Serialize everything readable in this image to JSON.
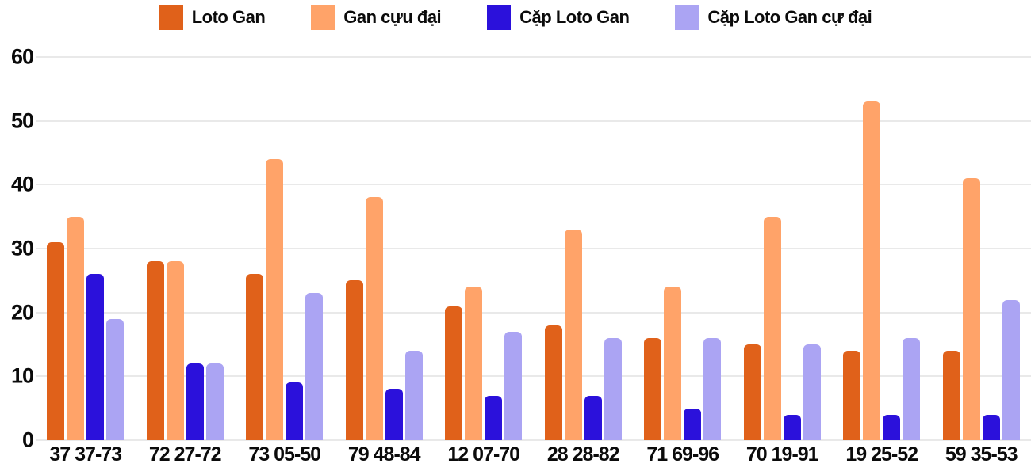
{
  "chart_data": {
    "type": "bar",
    "categories": [
      "37 37-73",
      "72 27-72",
      "73 05-50",
      "79 48-84",
      "12 07-70",
      "28 28-82",
      "71 69-96",
      "70 19-91",
      "19 25-52",
      "59 35-53"
    ],
    "series": [
      {
        "name": "Loto Gan",
        "color": "#e0611a",
        "values": [
          31,
          28,
          26,
          25,
          21,
          18,
          16,
          15,
          14,
          14
        ]
      },
      {
        "name": "Gan cựu đại",
        "color": "#ffa369",
        "values": [
          35,
          28,
          44,
          38,
          24,
          33,
          24,
          35,
          53,
          41
        ]
      },
      {
        "name": "Cặp Loto Gan",
        "color": "#2b11db",
        "values": [
          26,
          12,
          9,
          8,
          7,
          7,
          5,
          4,
          4,
          4
        ]
      },
      {
        "name": "Cặp Loto Gan cự đại",
        "color": "#aba4f3",
        "values": [
          19,
          12,
          23,
          14,
          17,
          16,
          16,
          15,
          16,
          22
        ]
      }
    ],
    "yticks": [
      0,
      10,
      20,
      30,
      40,
      50,
      60
    ],
    "ylim": [
      0,
      60
    ],
    "grid": true,
    "legend_position": "top"
  },
  "colors": {
    "background": "#ffffff",
    "gridline": "#e9e9e9",
    "text": "#0b0b0b"
  }
}
